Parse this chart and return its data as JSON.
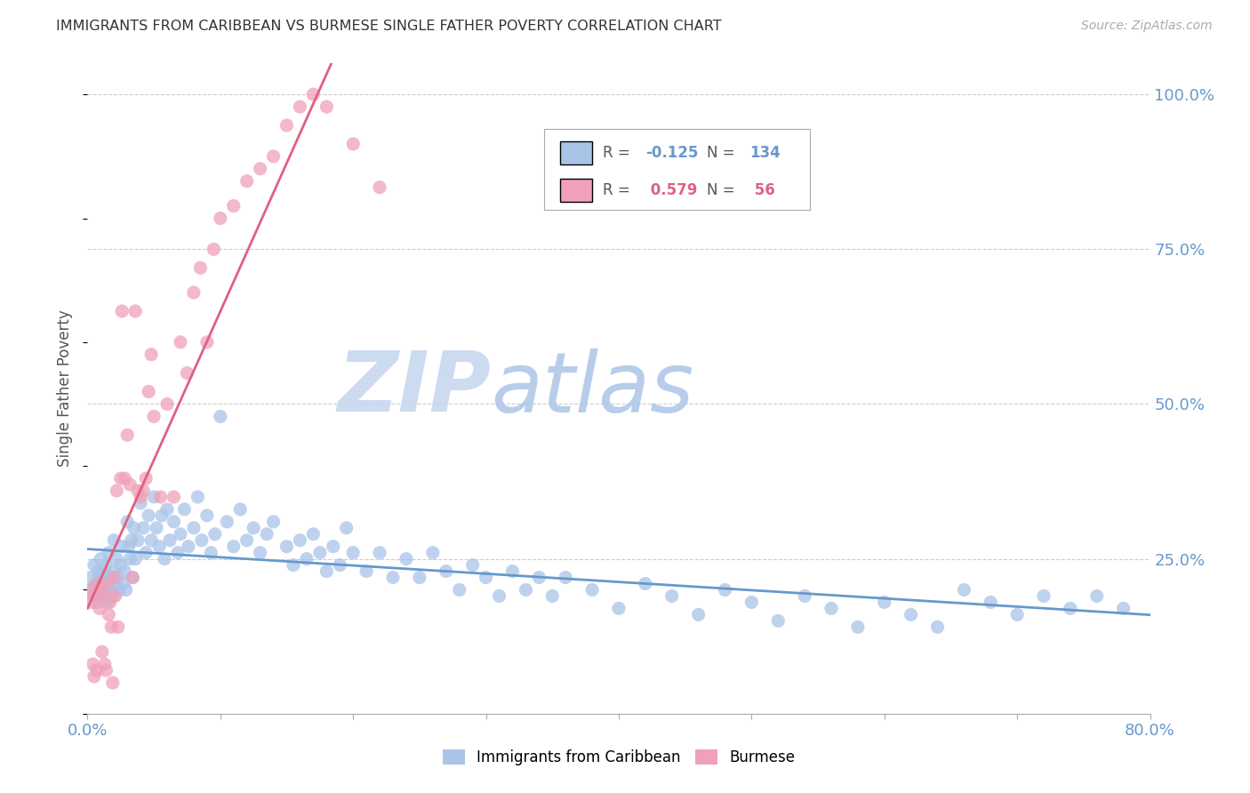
{
  "title": "IMMIGRANTS FROM CARIBBEAN VS BURMESE SINGLE FATHER POVERTY CORRELATION CHART",
  "source": "Source: ZipAtlas.com",
  "ylabel": "Single Father Poverty",
  "xlim": [
    0.0,
    0.8
  ],
  "ylim": [
    0.0,
    1.05
  ],
  "color_caribbean": "#aac4e8",
  "color_burmese": "#f0a0b8",
  "color_trend_caribbean": "#6699cc",
  "color_trend_burmese": "#e06080",
  "color_ytick": "#6699cc",
  "watermark_zip": "ZIP",
  "watermark_atlas": "atlas",
  "watermark_color_zip": "#c8d8f0",
  "watermark_color_atlas": "#b8cce8",
  "caribbean_x": [
    0.002,
    0.003,
    0.004,
    0.005,
    0.006,
    0.007,
    0.008,
    0.008,
    0.009,
    0.01,
    0.01,
    0.011,
    0.012,
    0.012,
    0.013,
    0.014,
    0.015,
    0.015,
    0.016,
    0.017,
    0.018,
    0.019,
    0.02,
    0.02,
    0.021,
    0.022,
    0.023,
    0.024,
    0.025,
    0.026,
    0.027,
    0.028,
    0.029,
    0.03,
    0.031,
    0.032,
    0.033,
    0.034,
    0.035,
    0.036,
    0.038,
    0.04,
    0.042,
    0.044,
    0.046,
    0.048,
    0.05,
    0.052,
    0.054,
    0.056,
    0.058,
    0.06,
    0.062,
    0.065,
    0.068,
    0.07,
    0.073,
    0.076,
    0.08,
    0.083,
    0.086,
    0.09,
    0.093,
    0.096,
    0.1,
    0.105,
    0.11,
    0.115,
    0.12,
    0.125,
    0.13,
    0.135,
    0.14,
    0.15,
    0.155,
    0.16,
    0.165,
    0.17,
    0.175,
    0.18,
    0.185,
    0.19,
    0.195,
    0.2,
    0.21,
    0.22,
    0.23,
    0.24,
    0.25,
    0.26,
    0.27,
    0.28,
    0.29,
    0.3,
    0.31,
    0.32,
    0.33,
    0.34,
    0.35,
    0.36,
    0.38,
    0.4,
    0.42,
    0.44,
    0.46,
    0.48,
    0.5,
    0.52,
    0.54,
    0.56,
    0.58,
    0.6,
    0.62,
    0.64,
    0.66,
    0.68,
    0.7,
    0.72,
    0.74,
    0.76,
    0.78
  ],
  "caribbean_y": [
    0.22,
    0.2,
    0.19,
    0.24,
    0.21,
    0.18,
    0.23,
    0.2,
    0.22,
    0.25,
    0.21,
    0.19,
    0.23,
    0.22,
    0.2,
    0.24,
    0.21,
    0.18,
    0.26,
    0.22,
    0.2,
    0.19,
    0.28,
    0.23,
    0.21,
    0.25,
    0.22,
    0.2,
    0.24,
    0.27,
    0.21,
    0.23,
    0.2,
    0.31,
    0.27,
    0.25,
    0.28,
    0.22,
    0.3,
    0.25,
    0.28,
    0.34,
    0.3,
    0.26,
    0.32,
    0.28,
    0.35,
    0.3,
    0.27,
    0.32,
    0.25,
    0.33,
    0.28,
    0.31,
    0.26,
    0.29,
    0.33,
    0.27,
    0.3,
    0.35,
    0.28,
    0.32,
    0.26,
    0.29,
    0.48,
    0.31,
    0.27,
    0.33,
    0.28,
    0.3,
    0.26,
    0.29,
    0.31,
    0.27,
    0.24,
    0.28,
    0.25,
    0.29,
    0.26,
    0.23,
    0.27,
    0.24,
    0.3,
    0.26,
    0.23,
    0.26,
    0.22,
    0.25,
    0.22,
    0.26,
    0.23,
    0.2,
    0.24,
    0.22,
    0.19,
    0.23,
    0.2,
    0.22,
    0.19,
    0.22,
    0.2,
    0.17,
    0.21,
    0.19,
    0.16,
    0.2,
    0.18,
    0.15,
    0.19,
    0.17,
    0.14,
    0.18,
    0.16,
    0.14,
    0.2,
    0.18,
    0.16,
    0.19,
    0.17,
    0.19,
    0.17
  ],
  "burmese_x": [
    0.002,
    0.003,
    0.004,
    0.005,
    0.006,
    0.007,
    0.008,
    0.009,
    0.01,
    0.011,
    0.012,
    0.013,
    0.014,
    0.015,
    0.016,
    0.017,
    0.018,
    0.019,
    0.02,
    0.021,
    0.022,
    0.023,
    0.025,
    0.026,
    0.028,
    0.03,
    0.032,
    0.034,
    0.036,
    0.038,
    0.04,
    0.042,
    0.044,
    0.046,
    0.048,
    0.05,
    0.055,
    0.06,
    0.065,
    0.07,
    0.075,
    0.08,
    0.085,
    0.09,
    0.095,
    0.1,
    0.11,
    0.12,
    0.13,
    0.14,
    0.15,
    0.16,
    0.17,
    0.18,
    0.2,
    0.22
  ],
  "burmese_y": [
    0.2,
    0.18,
    0.08,
    0.06,
    0.19,
    0.07,
    0.21,
    0.17,
    0.2,
    0.1,
    0.19,
    0.08,
    0.07,
    0.21,
    0.16,
    0.18,
    0.14,
    0.05,
    0.22,
    0.19,
    0.36,
    0.14,
    0.38,
    0.65,
    0.38,
    0.45,
    0.37,
    0.22,
    0.65,
    0.36,
    0.35,
    0.36,
    0.38,
    0.52,
    0.58,
    0.48,
    0.35,
    0.5,
    0.35,
    0.6,
    0.55,
    0.68,
    0.72,
    0.6,
    0.75,
    0.8,
    0.82,
    0.86,
    0.88,
    0.9,
    0.95,
    0.98,
    1.0,
    0.98,
    0.92,
    0.85
  ]
}
